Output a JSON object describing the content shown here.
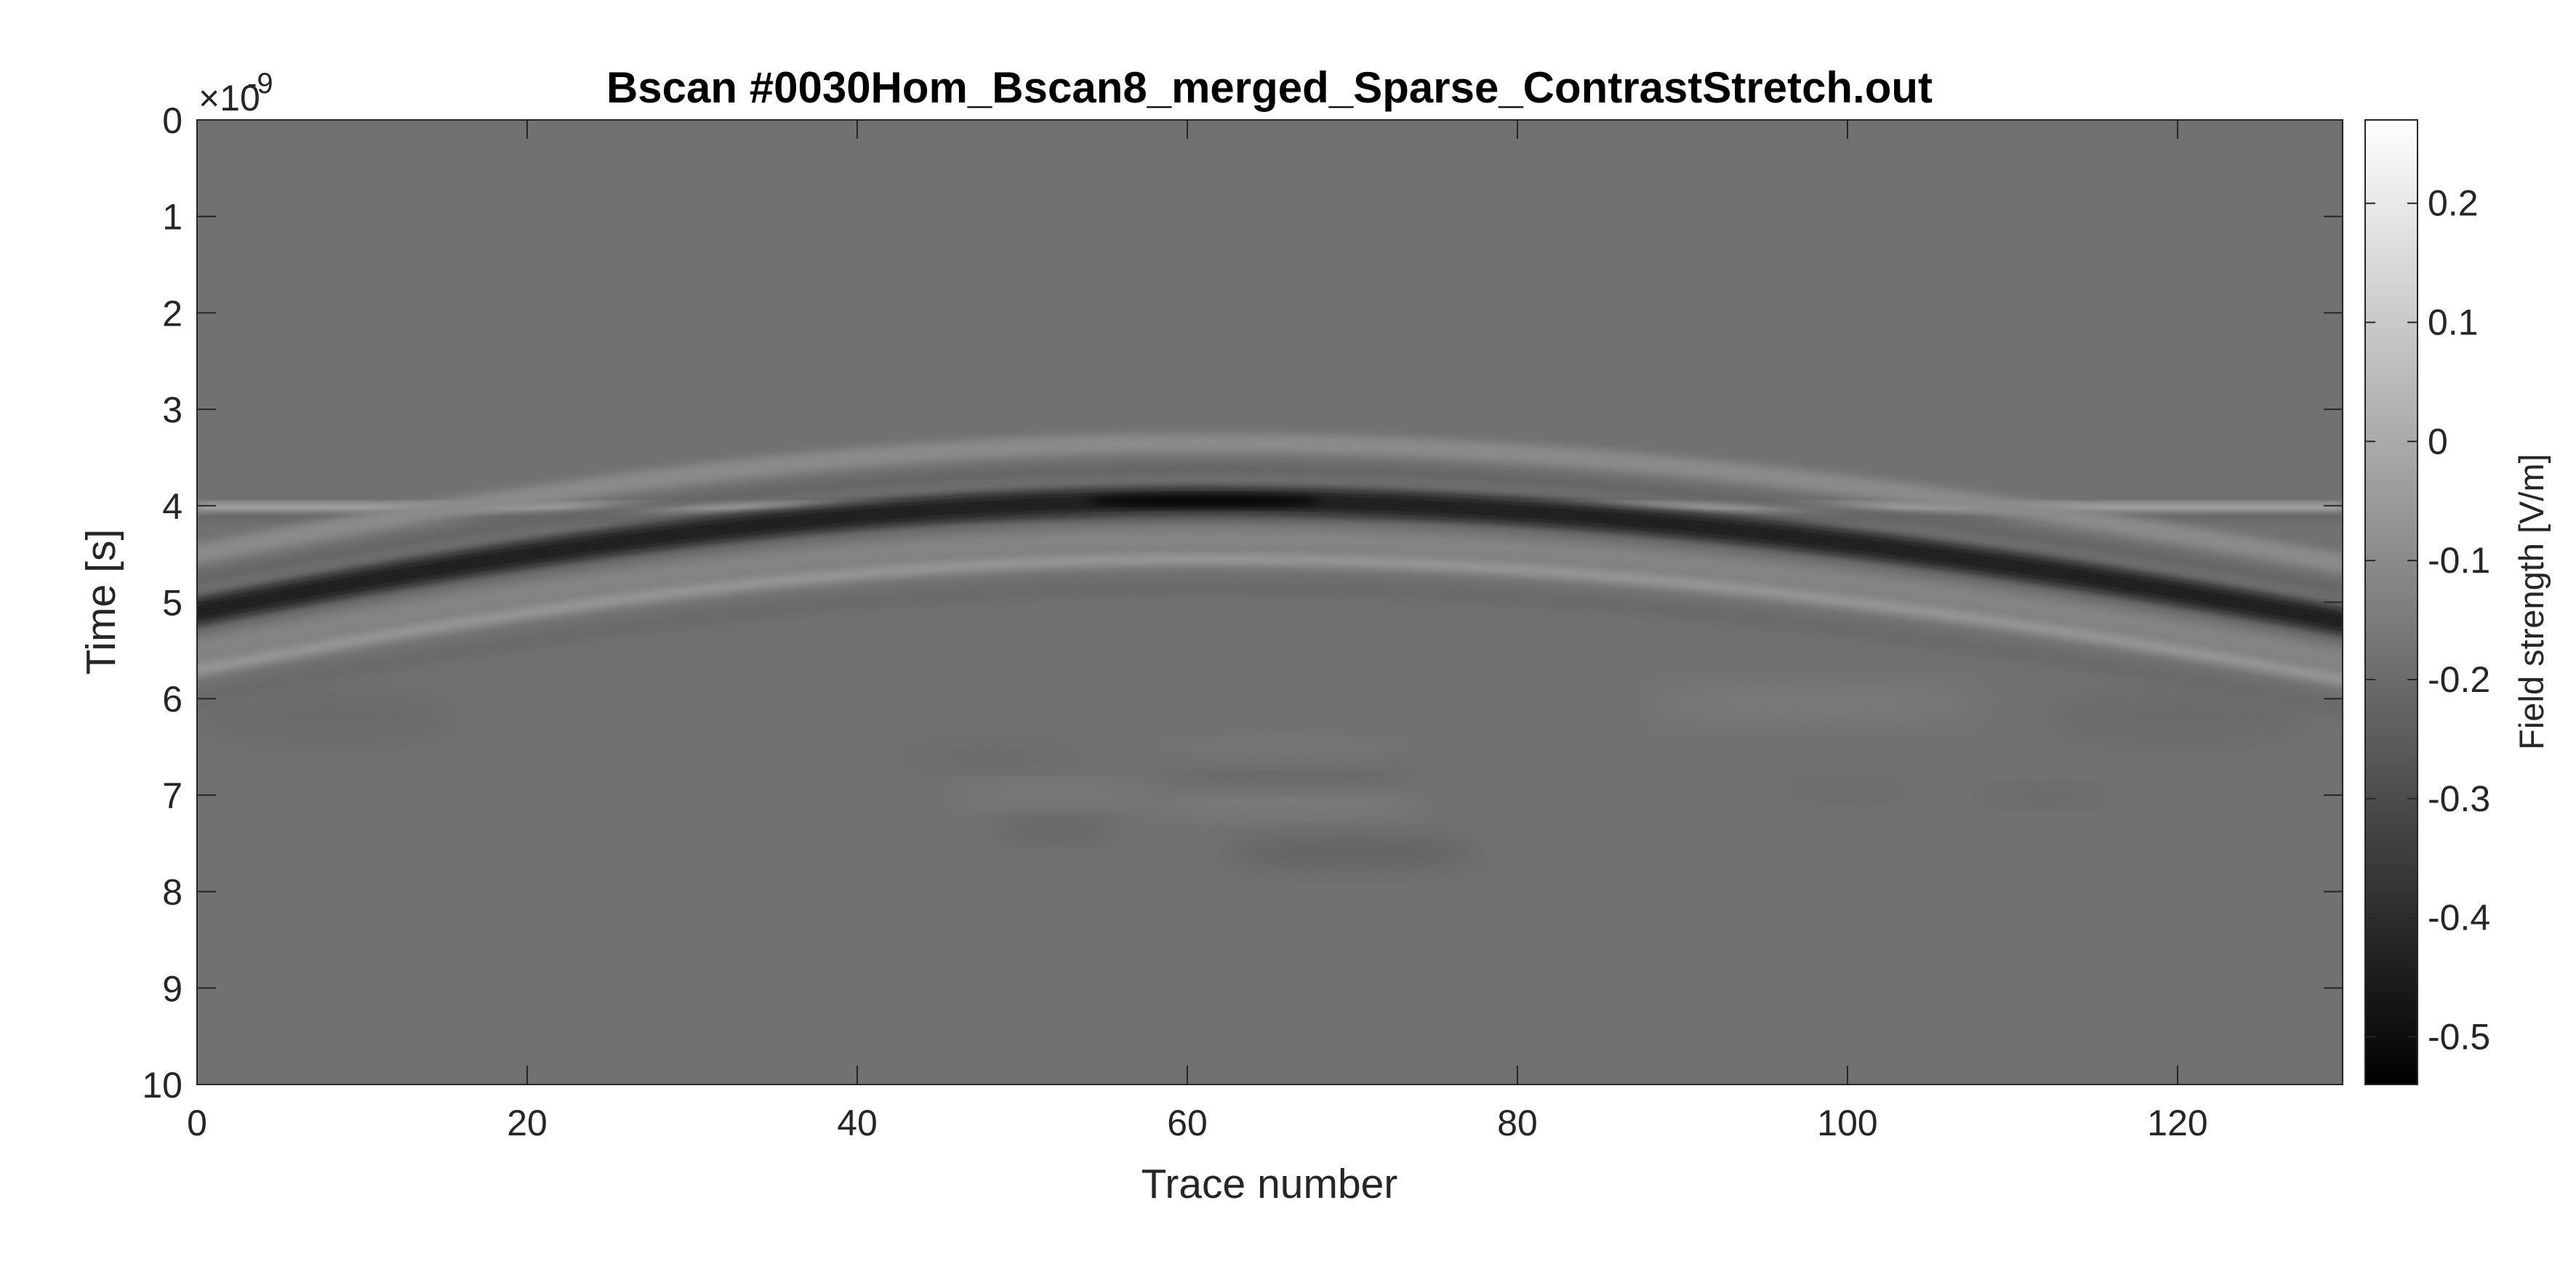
{
  "chart_data": {
    "type": "heatmap",
    "title": "Bscan #0030Hom_Bscan8_merged_Sparse_ContrastStretch.out",
    "xlabel": "Trace number",
    "ylabel": "Time [s]",
    "x_range": [
      0,
      130
    ],
    "y_range": [
      0,
      10
    ],
    "y_scale_exponent_label": "×10",
    "y_scale_exponent": "-9",
    "x_ticks": [
      0,
      20,
      40,
      60,
      80,
      100,
      120
    ],
    "x_tick_labels": [
      "0",
      "20",
      "40",
      "60",
      "80",
      "100",
      "120"
    ],
    "y_ticks": [
      0,
      1,
      2,
      3,
      4,
      5,
      6,
      7,
      8,
      9,
      10
    ],
    "y_tick_labels": [
      "0",
      "1",
      "2",
      "3",
      "4",
      "5",
      "6",
      "7",
      "8",
      "9",
      "10"
    ],
    "colormap": "gray",
    "colorbar": {
      "label": "Field strength [V/m]",
      "range": [
        -0.54,
        0.27
      ],
      "ticks": [
        0.2,
        0.1,
        0,
        -0.1,
        -0.2,
        -0.3,
        -0.4,
        -0.5
      ],
      "tick_labels": [
        "0.2",
        "0.1",
        "0",
        "-0.1",
        "-0.2",
        "-0.3",
        "-0.4",
        "-0.5"
      ]
    },
    "background_value": -0.18,
    "features": [
      {
        "type": "hyperbola",
        "apex_trace": 61,
        "apex_time": 3.9,
        "edge_time_at_trace_0": 5.05,
        "edge_time_at_trace_130": 5.15,
        "peak_value": -0.54,
        "side_lobe_value": -0.08
      },
      {
        "type": "horizontal_band",
        "time": 4.02,
        "value": 0.05
      }
    ]
  }
}
